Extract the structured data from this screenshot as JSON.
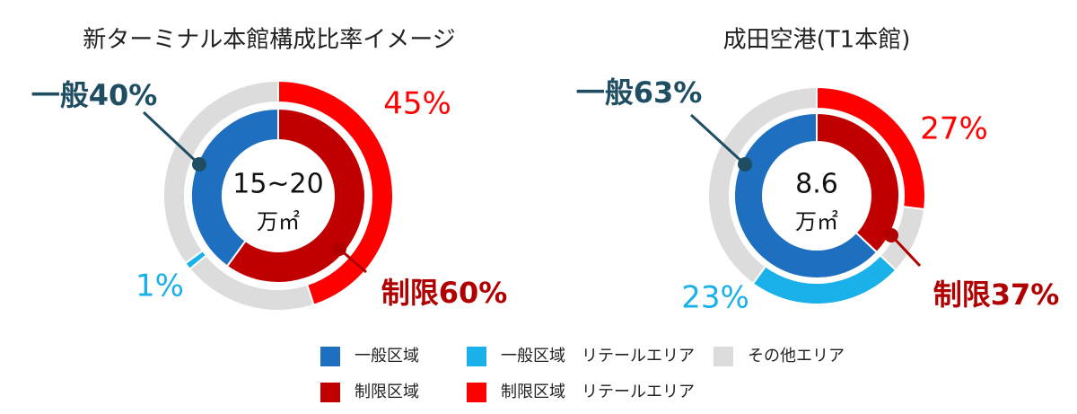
{
  "chart_data": [
    {
      "type": "donut",
      "title": "新ターミナル本館構成比率イメージ",
      "center_labels": [
        "15~20",
        "万㎡"
      ],
      "rings": [
        {
          "values": [
            60,
            40
          ],
          "colors": [
            "#c00000",
            "#1f6fc0"
          ],
          "value_labels": [
            "制限60%",
            "一般40%"
          ]
        },
        {
          "values": [
            45,
            19,
            1,
            35
          ],
          "colors": [
            "#ff0000",
            "#dcdcdc",
            "#1ab0ea",
            "#dcdcdc"
          ],
          "value_labels": [
            "45%",
            null,
            "1%",
            null
          ]
        }
      ]
    },
    {
      "type": "donut",
      "title": "成田空港(T1本館)",
      "center_labels": [
        "8.6",
        "万㎡"
      ],
      "rings": [
        {
          "values": [
            37,
            63
          ],
          "colors": [
            "#c00000",
            "#1f6fc0"
          ],
          "value_labels": [
            "制限37%",
            "一般63%"
          ]
        },
        {
          "values": [
            27,
            10,
            23,
            40
          ],
          "colors": [
            "#ff0000",
            "#dcdcdc",
            "#1ab0ea",
            "#dcdcdc"
          ],
          "value_labels": [
            "27%",
            null,
            "23%",
            null
          ]
        }
      ]
    }
  ],
  "legend": [
    {
      "name": "一般区域",
      "color": "#1f6fc0"
    },
    {
      "name": "一般区域　リテールエリア",
      "color": "#1ab0ea"
    },
    {
      "name": "その他エリア",
      "color": "#dcdcdc"
    },
    {
      "name": "制限区域",
      "color": "#c00000"
    },
    {
      "name": "制限区域　リテールエリア",
      "color": "#ff0000"
    }
  ]
}
